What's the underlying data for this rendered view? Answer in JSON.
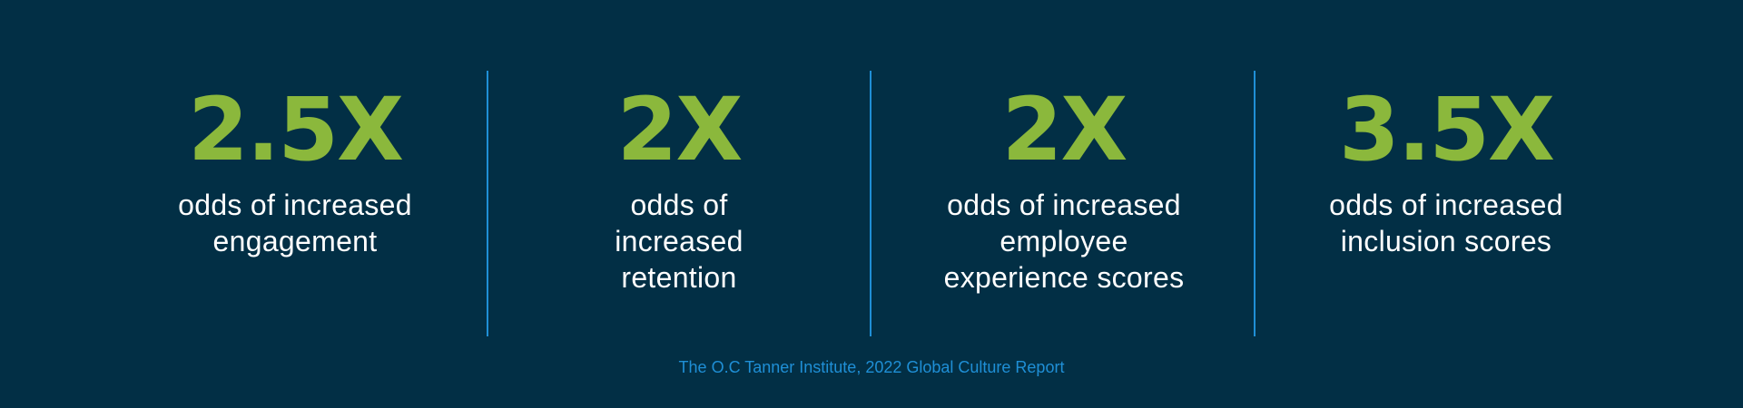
{
  "colors": {
    "background": "#022f45",
    "value": "#8bb83c",
    "caption": "#ffffff",
    "accent": "#1f8fd6"
  },
  "stats": [
    {
      "value": "2.5X",
      "caption_lines": [
        "odds of increased",
        "engagement"
      ]
    },
    {
      "value": "2X",
      "caption_lines": [
        "odds of",
        "increased",
        "retention"
      ]
    },
    {
      "value": "2X",
      "caption_lines": [
        "odds of increased",
        "employee",
        "experience scores"
      ]
    },
    {
      "value": "3.5X",
      "caption_lines": [
        "odds of increased",
        "inclusion scores"
      ]
    }
  ],
  "source": "The O.C Tanner Institute, 2022 Global Culture Report"
}
